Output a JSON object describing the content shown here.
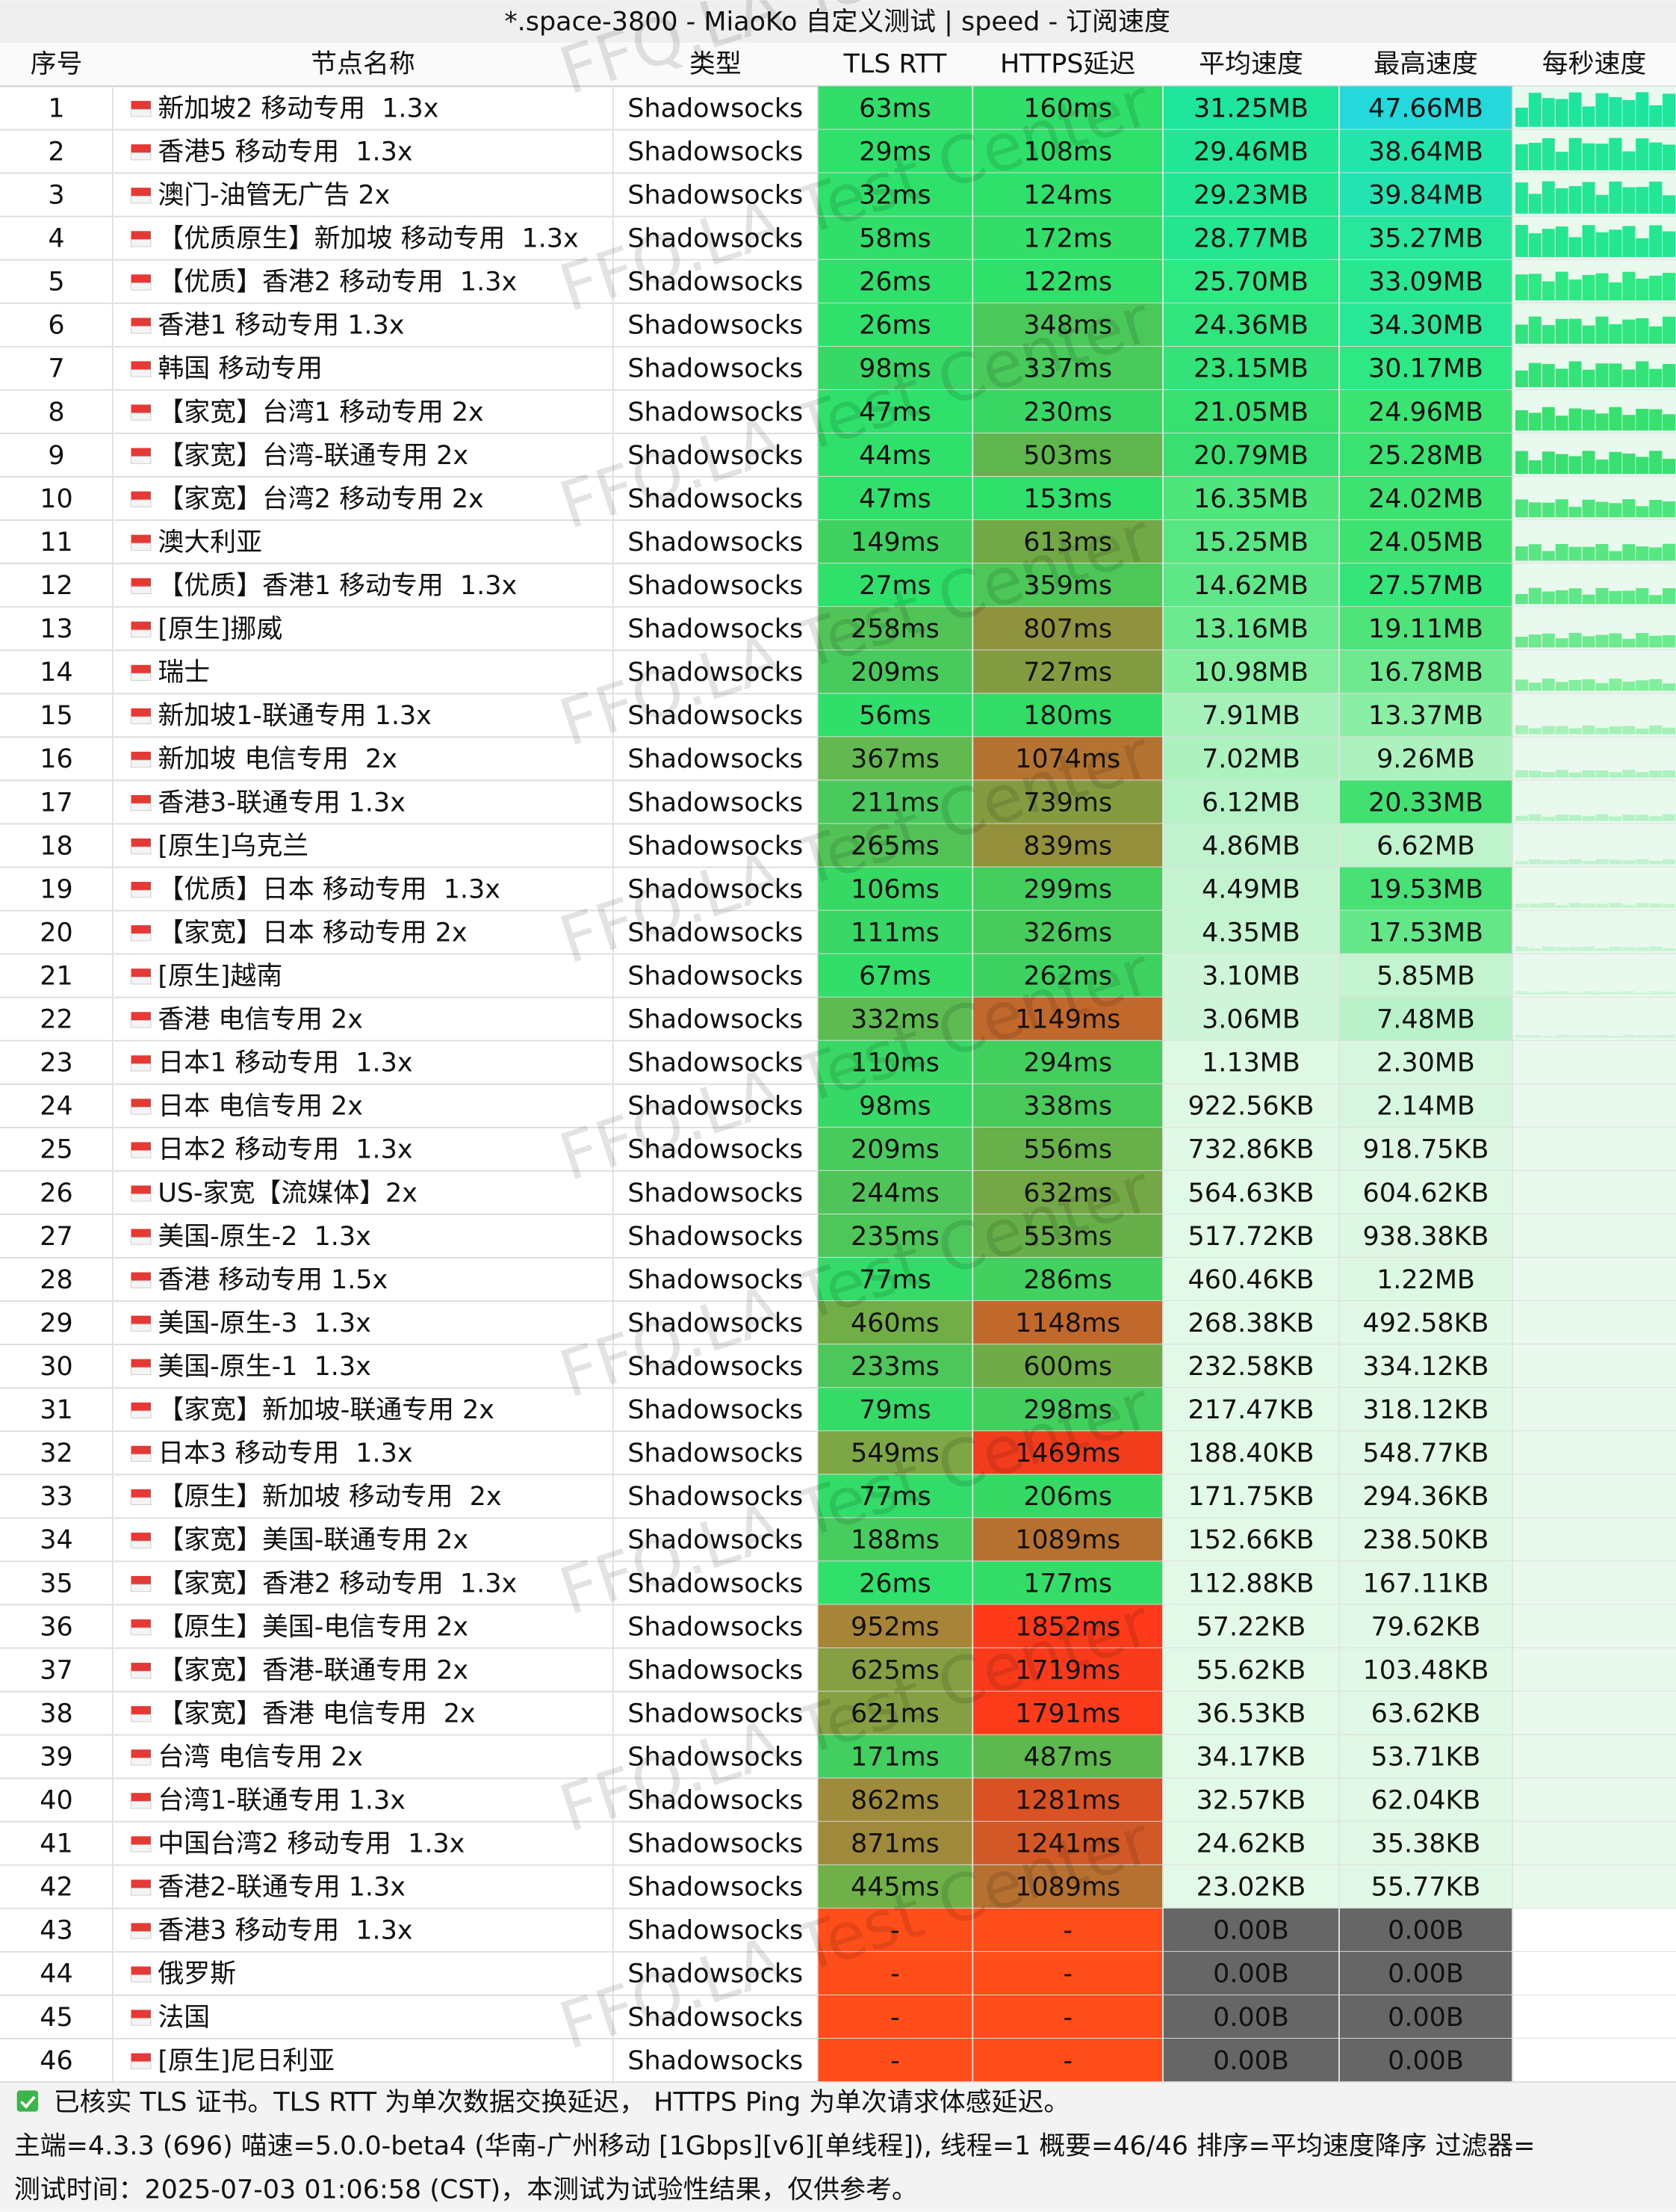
{
  "title": "*.space-3800 - MiaoKo 自定义测试 | speed - 订阅速度",
  "watermark": "FFQ.LA Test Center",
  "table": {
    "headers": [
      "序号",
      "节点名称",
      "类型",
      "TLS RTT",
      "HTTPS延迟",
      "平均速度",
      "最高速度",
      "每秒速度"
    ],
    "rows": [
      [
        1,
        "新加坡2 移动专用  1.3x",
        "Shadowsocks",
        "63ms",
        "160ms",
        "31.25MB",
        "47.66MB"
      ],
      [
        2,
        "香港5 移动专用  1.3x",
        "Shadowsocks",
        "29ms",
        "108ms",
        "29.46MB",
        "38.64MB"
      ],
      [
        3,
        "澳门-油管无广告 2x",
        "Shadowsocks",
        "32ms",
        "124ms",
        "29.23MB",
        "39.84MB"
      ],
      [
        4,
        "【优质原生】新加坡 移动专用  1.3x",
        "Shadowsocks",
        "58ms",
        "172ms",
        "28.77MB",
        "35.27MB"
      ],
      [
        5,
        "【优质】香港2 移动专用  1.3x",
        "Shadowsocks",
        "26ms",
        "122ms",
        "25.70MB",
        "33.09MB"
      ],
      [
        6,
        "香港1 移动专用 1.3x",
        "Shadowsocks",
        "26ms",
        "348ms",
        "24.36MB",
        "34.30MB"
      ],
      [
        7,
        "韩国 移动专用",
        "Shadowsocks",
        "98ms",
        "337ms",
        "23.15MB",
        "30.17MB"
      ],
      [
        8,
        "【家宽】台湾1 移动专用 2x",
        "Shadowsocks",
        "47ms",
        "230ms",
        "21.05MB",
        "24.96MB"
      ],
      [
        9,
        "【家宽】台湾-联通专用 2x",
        "Shadowsocks",
        "44ms",
        "503ms",
        "20.79MB",
        "25.28MB"
      ],
      [
        10,
        "【家宽】台湾2 移动专用 2x",
        "Shadowsocks",
        "47ms",
        "153ms",
        "16.35MB",
        "24.02MB"
      ],
      [
        11,
        "澳大利亚",
        "Shadowsocks",
        "149ms",
        "613ms",
        "15.25MB",
        "24.05MB"
      ],
      [
        12,
        "【优质】香港1 移动专用  1.3x",
        "Shadowsocks",
        "27ms",
        "359ms",
        "14.62MB",
        "27.57MB"
      ],
      [
        13,
        "[原生]挪威",
        "Shadowsocks",
        "258ms",
        "807ms",
        "13.16MB",
        "19.11MB"
      ],
      [
        14,
        "瑞士",
        "Shadowsocks",
        "209ms",
        "727ms",
        "10.98MB",
        "16.78MB"
      ],
      [
        15,
        "新加坡1-联通专用 1.3x",
        "Shadowsocks",
        "56ms",
        "180ms",
        "7.91MB",
        "13.37MB"
      ],
      [
        16,
        "新加坡 电信专用  2x",
        "Shadowsocks",
        "367ms",
        "1074ms",
        "7.02MB",
        "9.26MB"
      ],
      [
        17,
        "香港3-联通专用 1.3x",
        "Shadowsocks",
        "211ms",
        "739ms",
        "6.12MB",
        "20.33MB"
      ],
      [
        18,
        "[原生]乌克兰",
        "Shadowsocks",
        "265ms",
        "839ms",
        "4.86MB",
        "6.62MB"
      ],
      [
        19,
        "【优质】日本 移动专用  1.3x",
        "Shadowsocks",
        "106ms",
        "299ms",
        "4.49MB",
        "19.53MB"
      ],
      [
        20,
        "【家宽】日本 移动专用 2x",
        "Shadowsocks",
        "111ms",
        "326ms",
        "4.35MB",
        "17.53MB"
      ],
      [
        21,
        "[原生]越南",
        "Shadowsocks",
        "67ms",
        "262ms",
        "3.10MB",
        "5.85MB"
      ],
      [
        22,
        "香港 电信专用 2x",
        "Shadowsocks",
        "332ms",
        "1149ms",
        "3.06MB",
        "7.48MB"
      ],
      [
        23,
        "日本1 移动专用  1.3x",
        "Shadowsocks",
        "110ms",
        "294ms",
        "1.13MB",
        "2.30MB"
      ],
      [
        24,
        "日本 电信专用 2x",
        "Shadowsocks",
        "98ms",
        "338ms",
        "922.56KB",
        "2.14MB"
      ],
      [
        25,
        "日本2 移动专用  1.3x",
        "Shadowsocks",
        "209ms",
        "556ms",
        "732.86KB",
        "918.75KB"
      ],
      [
        26,
        "US-家宽【流媒体】2x",
        "Shadowsocks",
        "244ms",
        "632ms",
        "564.63KB",
        "604.62KB"
      ],
      [
        27,
        "美国-原生-2  1.3x",
        "Shadowsocks",
        "235ms",
        "553ms",
        "517.72KB",
        "938.38KB"
      ],
      [
        28,
        "香港 移动专用 1.5x",
        "Shadowsocks",
        "77ms",
        "286ms",
        "460.46KB",
        "1.22MB"
      ],
      [
        29,
        "美国-原生-3  1.3x",
        "Shadowsocks",
        "460ms",
        "1148ms",
        "268.38KB",
        "492.58KB"
      ],
      [
        30,
        "美国-原生-1  1.3x",
        "Shadowsocks",
        "233ms",
        "600ms",
        "232.58KB",
        "334.12KB"
      ],
      [
        31,
        "【家宽】新加坡-联通专用 2x",
        "Shadowsocks",
        "79ms",
        "298ms",
        "217.47KB",
        "318.12KB"
      ],
      [
        32,
        "日本3 移动专用  1.3x",
        "Shadowsocks",
        "549ms",
        "1469ms",
        "188.40KB",
        "548.77KB"
      ],
      [
        33,
        "【原生】新加坡 移动专用  2x",
        "Shadowsocks",
        "77ms",
        "206ms",
        "171.75KB",
        "294.36KB"
      ],
      [
        34,
        "【家宽】美国-联通专用 2x",
        "Shadowsocks",
        "188ms",
        "1089ms",
        "152.66KB",
        "238.50KB"
      ],
      [
        35,
        "【家宽】香港2 移动专用  1.3x",
        "Shadowsocks",
        "26ms",
        "177ms",
        "112.88KB",
        "167.11KB"
      ],
      [
        36,
        "【原生】美国-电信专用 2x",
        "Shadowsocks",
        "952ms",
        "1852ms",
        "57.22KB",
        "79.62KB"
      ],
      [
        37,
        "【家宽】香港-联通专用 2x",
        "Shadowsocks",
        "625ms",
        "1719ms",
        "55.62KB",
        "103.48KB"
      ],
      [
        38,
        "【家宽】香港 电信专用  2x",
        "Shadowsocks",
        "621ms",
        "1791ms",
        "36.53KB",
        "63.62KB"
      ],
      [
        39,
        "台湾 电信专用 2x",
        "Shadowsocks",
        "171ms",
        "487ms",
        "34.17KB",
        "53.71KB"
      ],
      [
        40,
        "台湾1-联通专用 1.3x",
        "Shadowsocks",
        "862ms",
        "1281ms",
        "32.57KB",
        "62.04KB"
      ],
      [
        41,
        "中国台湾2 移动专用  1.3x",
        "Shadowsocks",
        "871ms",
        "1241ms",
        "24.62KB",
        "35.38KB"
      ],
      [
        42,
        "香港2-联通专用 1.3x",
        "Shadowsocks",
        "445ms",
        "1089ms",
        "23.02KB",
        "55.77KB"
      ],
      [
        43,
        "香港3 移动专用  1.3x",
        "Shadowsocks",
        "-",
        "-",
        "0.00B",
        "0.00B"
      ],
      [
        44,
        "俄罗斯",
        "Shadowsocks",
        "-",
        "-",
        "0.00B",
        "0.00B"
      ],
      [
        45,
        "法国",
        "Shadowsocks",
        "-",
        "-",
        "0.00B",
        "0.00B"
      ],
      [
        46,
        "[原生]尼日利亚",
        "Shadowsocks",
        "-",
        "-",
        "0.00B",
        "0.00B"
      ]
    ]
  },
  "footer": [
    "已核实 TLS 证书。TLS RTT 为单次数据交换延迟， HTTPS Ping 为单次请求体感延迟。",
    "主端=4.3.3 (696) 喵速=5.0.0-beta4 (华南-广州移动 [1Gbps][v6][单线程]), 线程=1 概要=46/46 排序=平均速度降序 过滤器=",
    "测试时间：2025-07-03 01:06:58 (CST)，本测试为试验性结果，仅供参考。"
  ]
}
